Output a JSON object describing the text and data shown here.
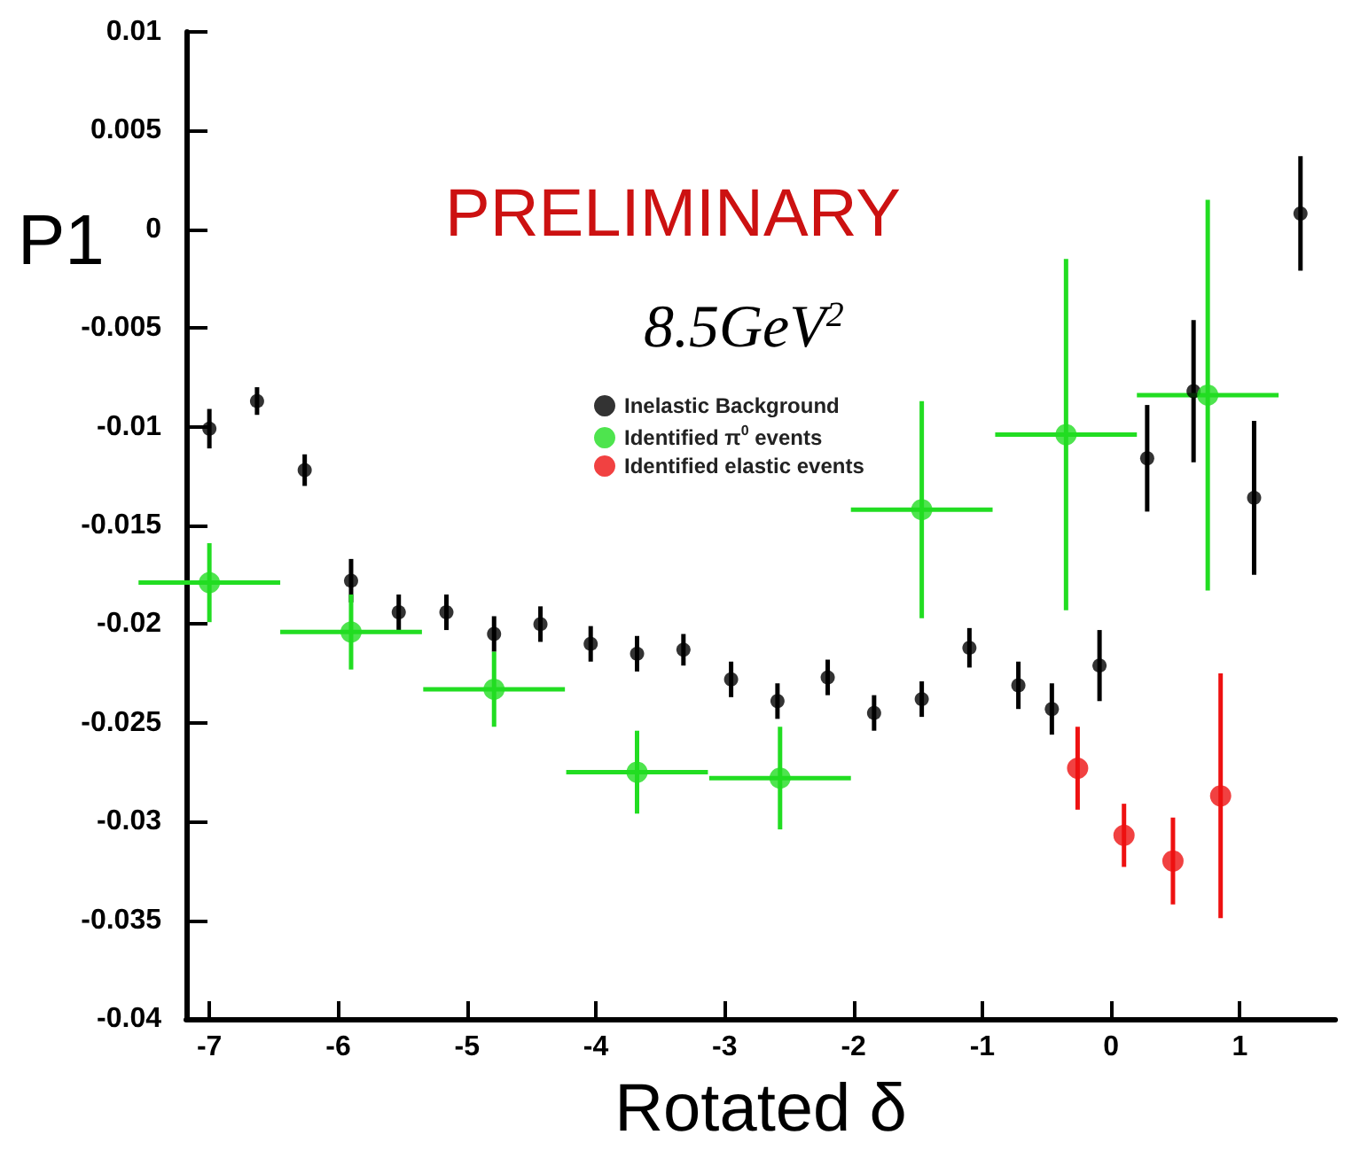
{
  "chart_data": {
    "type": "scatter",
    "ylabel": "P1",
    "xlabel": "Rotated δ",
    "annotations": [
      "PRELIMINARY",
      "8.5GeV$^{2}$"
    ],
    "xlim": [
      -7.18,
      1.74
    ],
    "xticks": [
      -7,
      -6,
      -5,
      -4,
      -3,
      -2,
      -1,
      0,
      1
    ],
    "ylim": [
      -0.04,
      0.01
    ],
    "yticks": [
      0.01,
      0.005,
      0,
      -0.005,
      -0.01,
      -0.015,
      -0.02,
      -0.025,
      -0.03,
      -0.035,
      -0.04
    ],
    "legend": "top",
    "grid": false,
    "marker": "circle",
    "series": [
      {
        "name": "Inelastic Background",
        "color": "#000000",
        "x": [
          -7.0,
          -6.63,
          -6.26,
          -5.9,
          -5.53,
          -5.16,
          -4.79,
          -4.43,
          -4.04,
          -3.68,
          -3.32,
          -2.95,
          -2.59,
          -2.2,
          -1.84,
          -1.47,
          -1.1,
          -0.72,
          -0.46,
          -0.09,
          0.28,
          0.64,
          1.11,
          1.47
        ],
        "values": [
          -0.0101,
          -0.0087,
          -0.0122,
          -0.0178,
          -0.0194,
          -0.0194,
          -0.0205,
          -0.02,
          -0.021,
          -0.0215,
          -0.0213,
          -0.0228,
          -0.0239,
          -0.0227,
          -0.0245,
          -0.0238,
          -0.0212,
          -0.0231,
          -0.0243,
          -0.0221,
          -0.0116,
          -0.0082,
          -0.0136,
          0.0008
        ],
        "errors": [
          0.001,
          0.0007,
          0.0008,
          0.0011,
          0.0009,
          0.0009,
          0.0009,
          0.0009,
          0.0009,
          0.0009,
          0.0008,
          0.0009,
          0.0009,
          0.0009,
          0.0009,
          0.0009,
          0.001,
          0.0012,
          0.0013,
          0.0018,
          0.0027,
          0.0036,
          0.0039,
          0.0029
        ]
      },
      {
        "name": "Identified π$^{0}$ events",
        "color": "#22dd22",
        "x": [
          -7.0,
          -5.9,
          -4.79,
          -3.68,
          -2.57,
          -1.47,
          -0.35,
          0.75
        ],
        "values": [
          -0.0179,
          -0.0204,
          -0.0233,
          -0.0275,
          -0.0278,
          -0.0142,
          -0.0104,
          -0.0084
        ],
        "errors": [
          0.002,
          0.0019,
          0.0019,
          0.0021,
          0.0026,
          0.0055,
          0.0089,
          0.0099
        ],
        "xerrors": [
          0.55,
          0.55,
          0.55,
          0.55,
          0.55,
          0.55,
          0.55,
          0.55
        ]
      },
      {
        "name": "Identified elastic events",
        "color": "#ee1111",
        "x": [
          -0.26,
          0.1,
          0.48,
          0.85
        ],
        "values": [
          -0.0273,
          -0.0307,
          -0.032,
          -0.0287
        ],
        "errors": [
          0.0021,
          0.0016,
          0.0022,
          0.0062
        ]
      }
    ]
  }
}
